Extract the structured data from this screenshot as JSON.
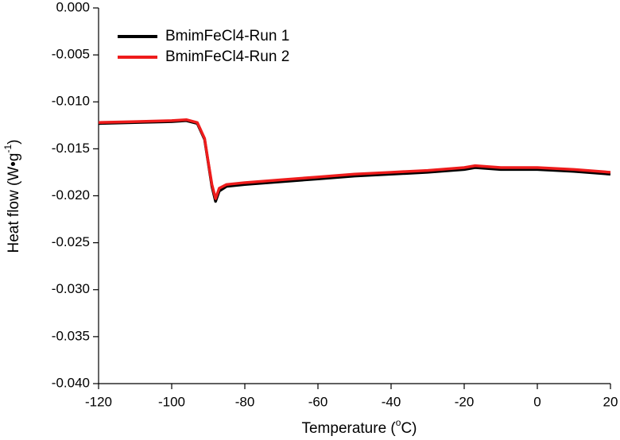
{
  "chart_data": {
    "type": "line",
    "xlabel": [
      "Temperature (",
      "o",
      "C)"
    ],
    "ylabel": [
      "Heat flow (W•g",
      "-1",
      ")"
    ],
    "xlim": [
      -120,
      20
    ],
    "xticks": [
      -120,
      -100,
      -80,
      -60,
      -40,
      -20,
      0,
      20
    ],
    "ylim": [
      -0.04,
      0.0
    ],
    "yticks": [
      {
        "value": 0,
        "label": "0.000"
      },
      -0.005,
      {
        "value": -0.01,
        "label": "-0.010"
      },
      -0.015,
      {
        "value": -0.02,
        "label": "-0.020"
      },
      -0.025,
      {
        "value": -0.03,
        "label": "-0.030"
      },
      -0.035,
      {
        "value": -0.04,
        "label": "-0.040"
      }
    ],
    "legend": "upper left",
    "series": [
      {
        "name": "BmimFeCl4-Run 1",
        "color": "#000000",
        "x": [
          -120,
          -110,
          -100,
          -96,
          -93,
          -91,
          -90,
          -89,
          -88,
          -87,
          -85,
          -80,
          -70,
          -60,
          -50,
          -40,
          -30,
          -20,
          -17,
          -10,
          0,
          10,
          20
        ],
        "values": [
          -0.0123,
          -0.0122,
          -0.0121,
          -0.012,
          -0.0123,
          -0.014,
          -0.0165,
          -0.019,
          -0.0206,
          -0.0195,
          -0.019,
          -0.0188,
          -0.0185,
          -0.0182,
          -0.0179,
          -0.0177,
          -0.0175,
          -0.0172,
          -0.017,
          -0.0172,
          -0.0172,
          -0.0174,
          -0.0177
        ]
      },
      {
        "name": "BmimFeCl4-Run 2",
        "color": "#ee1c1c",
        "x": [
          -120,
          -110,
          -100,
          -96,
          -93,
          -91,
          -90,
          -89,
          -88,
          -87,
          -85,
          -80,
          -70,
          -60,
          -50,
          -40,
          -30,
          -20,
          -17,
          -10,
          0,
          10,
          20
        ],
        "values": [
          -0.0122,
          -0.0121,
          -0.012,
          -0.0119,
          -0.0122,
          -0.0139,
          -0.0164,
          -0.0188,
          -0.0203,
          -0.0192,
          -0.0188,
          -0.0186,
          -0.0183,
          -0.018,
          -0.0177,
          -0.0175,
          -0.0173,
          -0.017,
          -0.0168,
          -0.017,
          -0.017,
          -0.0172,
          -0.0175
        ]
      }
    ]
  }
}
